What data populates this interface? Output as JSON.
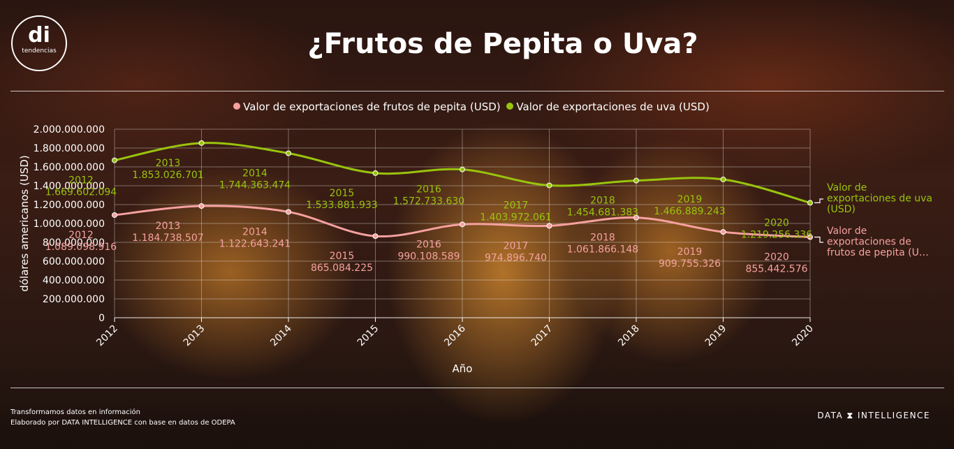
{
  "brand": {
    "logo_mark": "di",
    "logo_subtitle": "tendencias",
    "footer_logo_left": "DATA",
    "footer_logo_right": "INTELLIGENCE"
  },
  "title": "¿Frutos de Pepita o Uva?",
  "footer": {
    "line1": "Transformamos datos en información",
    "line2": "Elaborado por DATA INTELLIGENCE con base en datos de ODEPA"
  },
  "colors": {
    "pepita": "#f6a1a0",
    "uva": "#99c40d",
    "grid": "#ffffff"
  },
  "chart_data": {
    "type": "line",
    "x": [
      "2012",
      "2013",
      "2014",
      "2015",
      "2016",
      "2017",
      "2018",
      "2019",
      "2020"
    ],
    "xlabel": "Año",
    "ylabel": "dólares americanos (USD)",
    "ylim": [
      0,
      2000000000
    ],
    "yticks": [
      "0",
      "200.000.000",
      "400.000.000",
      "600.000.000",
      "800.000.000",
      "1.000.000.000",
      "1.200.000.000",
      "1.400.000.000",
      "1.600.000.000",
      "1.800.000.000",
      "2.000.000.000"
    ],
    "grid": true,
    "legend": "top",
    "series": [
      {
        "name": "Valor de exportaciones de frutos de pepita (USD)",
        "end_label": [
          "Valor de",
          "exportaciones de",
          "frutos de pepita (U…"
        ],
        "values": [
          1089098916,
          1184738507,
          1122643241,
          865084225,
          990108589,
          974896740,
          1061866148,
          909755326,
          855442576
        ],
        "labels": [
          "1.089.098.916",
          "1.184.738.507",
          "1.122.643.241",
          "865.084.225",
          "990.108.589",
          "974.896.740",
          "1.061.866.148",
          "909.755.326",
          "855.442.576"
        ]
      },
      {
        "name": "Valor de exportaciones de uva (USD)",
        "end_label": [
          "Valor de",
          "exportaciones de uva",
          "(USD)"
        ],
        "values": [
          1669602094,
          1853026701,
          1744363474,
          1533881933,
          1572733630,
          1403972061,
          1454681383,
          1466889243,
          1219256336
        ],
        "labels": [
          "1.669.602.094",
          "1.853.026.701",
          "1.744.363.474",
          "1.533.881.933",
          "1.572.733.630",
          "1.403.972.061",
          "1.454.681.383",
          "1.466.889.243",
          "1.219.256.336"
        ]
      }
    ]
  }
}
